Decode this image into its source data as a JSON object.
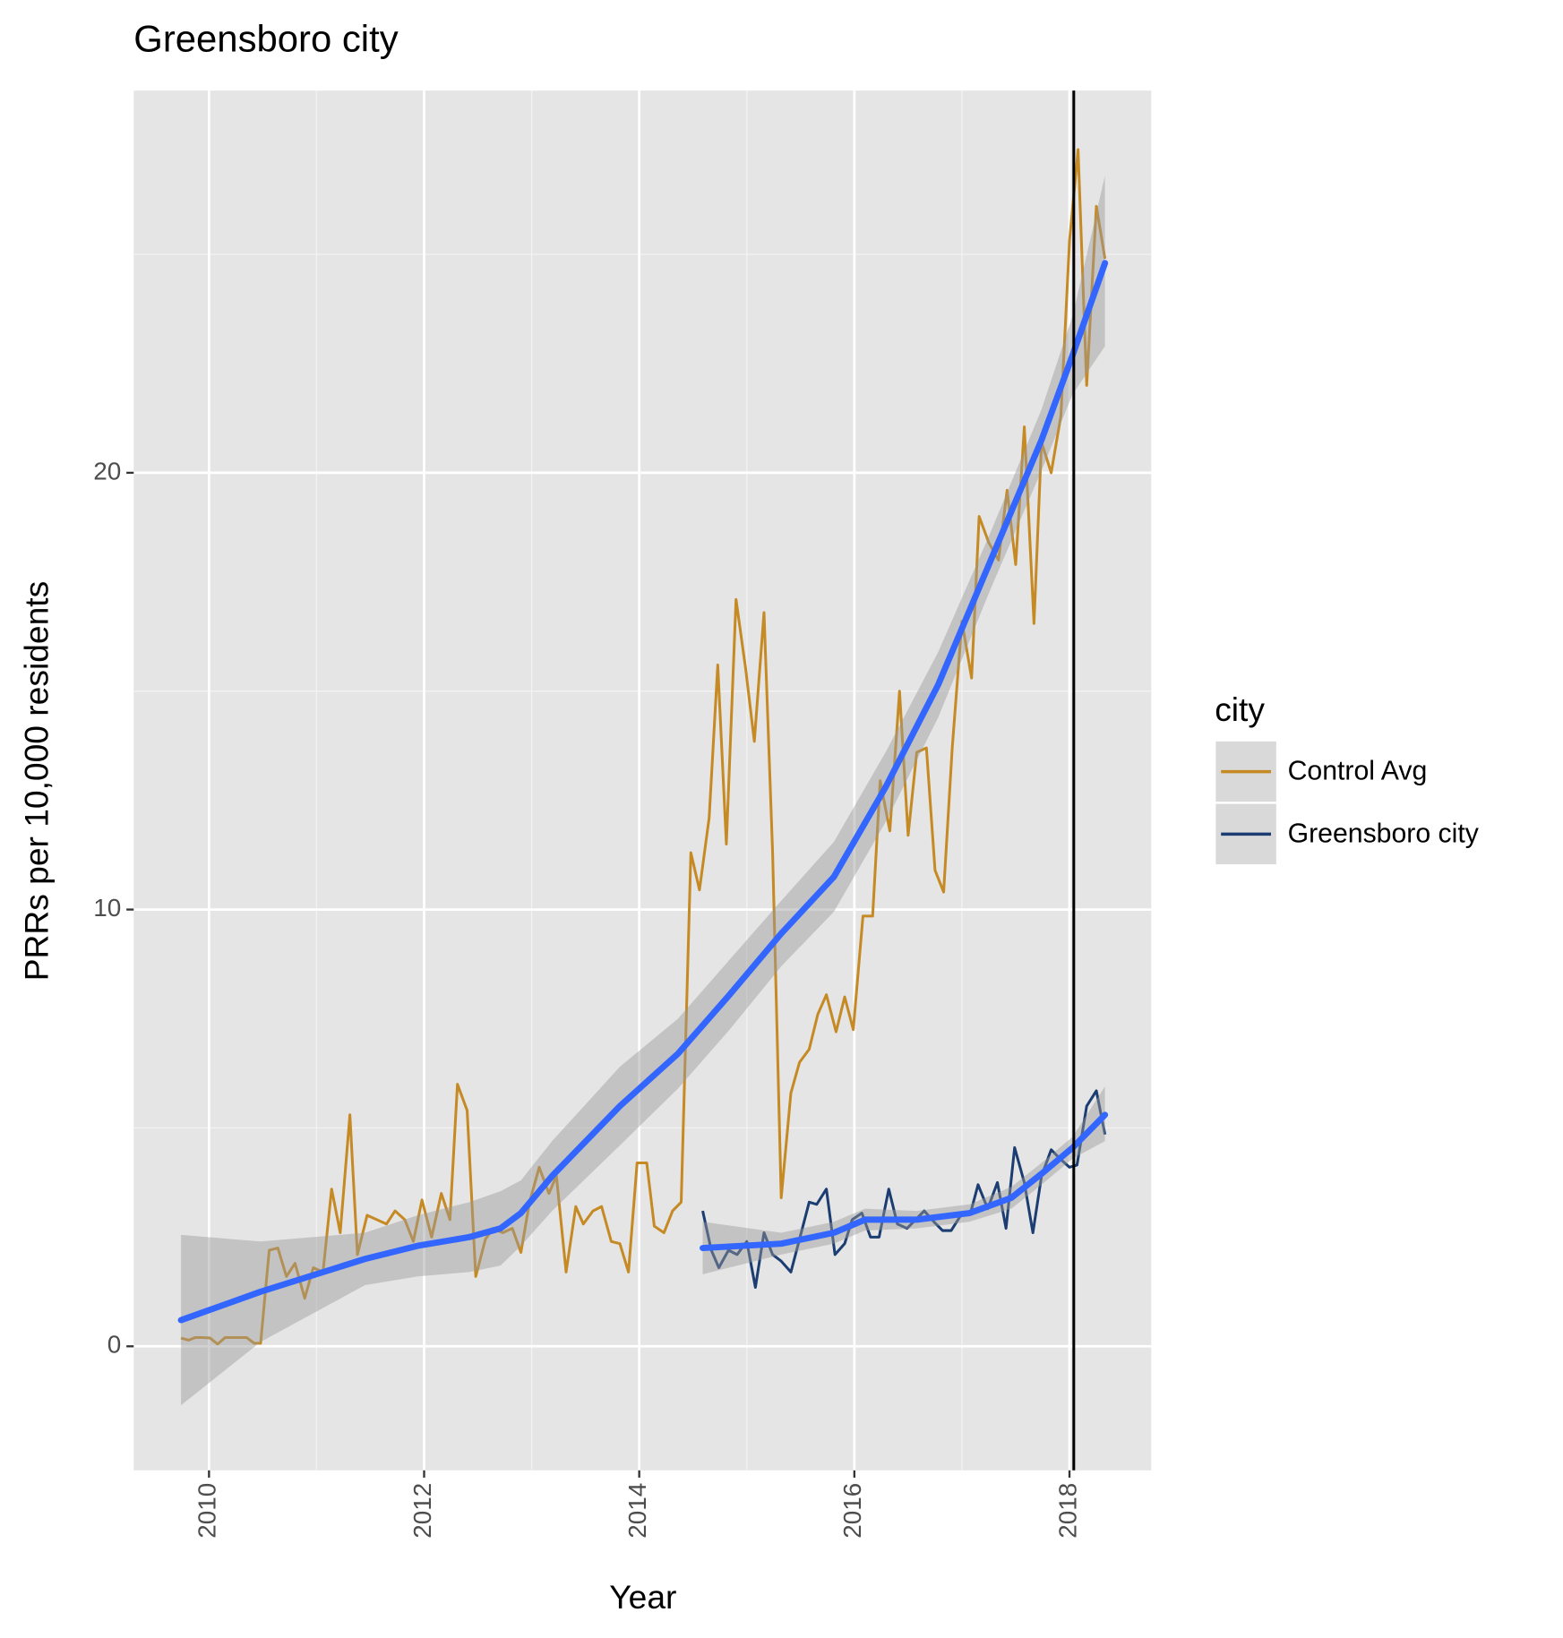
{
  "chart_data": {
    "type": "line",
    "title": "Greensboro city",
    "x_label": "Year",
    "y_label": "PRRs per 10,000 residents",
    "legend_title": "city",
    "legend_position": "right",
    "grid": true,
    "xlim": [
      2009.3,
      2018.76
    ],
    "ylim": [
      -2.84,
      28.75
    ],
    "xticks": [
      2010,
      2012,
      2014,
      2016,
      2018
    ],
    "yticks": [
      0,
      10,
      20
    ],
    "vline": 2018.04,
    "smooth_color": "#3366ff",
    "series": [
      {
        "name": "Control Avg",
        "color": "#c68a24",
        "x": [
          2009.74,
          2009.81,
          2009.87,
          2009.94,
          2010.01,
          2010.08,
          2010.15,
          2010.21,
          2010.28,
          2010.35,
          2010.42,
          2010.48,
          2010.56,
          2010.64,
          2010.72,
          2010.8,
          2010.89,
          2010.97,
          2011.06,
          2011.14,
          2011.22,
          2011.31,
          2011.38,
          2011.47,
          2011.56,
          2011.65,
          2011.73,
          2011.82,
          2011.9,
          2011.98,
          2012.07,
          2012.16,
          2012.24,
          2012.31,
          2012.4,
          2012.48,
          2012.57,
          2012.64,
          2012.73,
          2012.82,
          2012.9,
          2012.98,
          2013.07,
          2013.16,
          2013.23,
          2013.32,
          2013.41,
          2013.48,
          2013.57,
          2013.65,
          2013.74,
          2013.82,
          2013.9,
          2013.98,
          2014.07,
          2014.14,
          2014.23,
          2014.31,
          2014.39,
          2014.48,
          2014.56,
          2014.65,
          2014.73,
          2014.81,
          2014.9,
          2014.99,
          2015.07,
          2015.16,
          2015.24,
          2015.32,
          2015.41,
          2015.49,
          2015.58,
          2015.66,
          2015.74,
          2015.83,
          2015.91,
          2015.99,
          2016.08,
          2016.17,
          2016.24,
          2016.33,
          2016.42,
          2016.5,
          2016.58,
          2016.67,
          2016.75,
          2016.83,
          2016.91,
          2017.0,
          2017.09,
          2017.16,
          2017.25,
          2017.34,
          2017.42,
          2017.5,
          2017.58,
          2017.67,
          2017.74,
          2017.83,
          2017.92,
          2018.0,
          2018.08,
          2018.16,
          2018.25,
          2018.33
        ],
        "values": [
          0.19,
          0.14,
          0.2,
          0.2,
          0.19,
          0.05,
          0.2,
          0.2,
          0.2,
          0.2,
          0.07,
          0.07,
          2.2,
          2.25,
          1.6,
          1.9,
          1.1,
          1.8,
          1.7,
          3.6,
          2.6,
          5.3,
          2.1,
          3.0,
          2.9,
          2.8,
          3.1,
          2.9,
          2.4,
          3.35,
          2.5,
          3.5,
          2.9,
          6.0,
          5.4,
          1.6,
          2.45,
          2.7,
          2.6,
          2.7,
          2.15,
          3.3,
          4.1,
          3.5,
          3.9,
          1.7,
          3.2,
          2.8,
          3.1,
          3.2,
          2.4,
          2.35,
          1.7,
          4.2,
          4.2,
          2.75,
          2.6,
          3.1,
          3.3,
          11.3,
          10.45,
          12.1,
          15.6,
          11.5,
          17.1,
          15.5,
          13.85,
          16.8,
          11.3,
          3.4,
          5.8,
          6.5,
          6.8,
          7.6,
          8.05,
          7.2,
          8.0,
          7.25,
          9.85,
          9.85,
          12.95,
          11.8,
          15.0,
          11.7,
          13.6,
          13.7,
          10.9,
          10.4,
          13.7,
          16.6,
          15.3,
          19.0,
          18.4,
          18.0,
          19.6,
          17.9,
          21.05,
          16.55,
          20.7,
          20.0,
          21.3,
          25.3,
          27.4,
          22.0,
          26.1,
          24.9
        ],
        "smooth": {
          "x": [
            2009.74,
            2010.48,
            2011.45,
            2011.94,
            2012.42,
            2012.71,
            2012.9,
            2013.19,
            2013.82,
            2014.36,
            2014.84,
            2015.32,
            2015.81,
            2016.29,
            2016.78,
            2017.26,
            2017.74,
            2018.03,
            2018.33
          ],
          "values": [
            0.6,
            1.25,
            2.0,
            2.3,
            2.5,
            2.7,
            3.05,
            3.9,
            5.5,
            6.7,
            8.05,
            9.45,
            10.75,
            12.8,
            15.15,
            17.95,
            20.75,
            22.7,
            24.8
          ],
          "upper": [
            2.55,
            2.4,
            2.6,
            3.0,
            3.3,
            3.55,
            3.8,
            4.7,
            6.4,
            7.5,
            8.85,
            10.2,
            11.55,
            13.6,
            15.9,
            18.6,
            21.45,
            23.6,
            26.8
          ],
          "lower": [
            -1.35,
            0.1,
            1.4,
            1.6,
            1.7,
            1.85,
            2.3,
            3.1,
            4.6,
            5.9,
            7.25,
            8.7,
            9.95,
            12.0,
            14.4,
            17.3,
            20.05,
            21.8,
            22.9
          ]
        }
      },
      {
        "name": "Greensboro city",
        "color": "#1b3d72",
        "x": [
          2014.59,
          2014.67,
          2014.74,
          2014.83,
          2014.91,
          2015.0,
          2015.08,
          2015.16,
          2015.24,
          2015.32,
          2015.41,
          2015.49,
          2015.58,
          2015.65,
          2015.74,
          2015.82,
          2015.91,
          2015.98,
          2016.07,
          2016.15,
          2016.23,
          2016.32,
          2016.4,
          2016.49,
          2016.57,
          2016.65,
          2016.74,
          2016.82,
          2016.9,
          2016.99,
          2017.08,
          2017.15,
          2017.24,
          2017.33,
          2017.41,
          2017.49,
          2017.58,
          2017.66,
          2017.74,
          2017.83,
          2017.91,
          2018.0,
          2018.07,
          2018.16,
          2018.25,
          2018.33
        ],
        "values": [
          3.1,
          2.2,
          1.8,
          2.2,
          2.1,
          2.4,
          1.35,
          2.6,
          2.1,
          1.95,
          1.7,
          2.45,
          3.3,
          3.25,
          3.6,
          2.1,
          2.35,
          2.9,
          3.05,
          2.5,
          2.5,
          3.6,
          2.8,
          2.7,
          2.9,
          3.1,
          2.85,
          2.65,
          2.65,
          3.0,
          3.05,
          3.7,
          3.15,
          3.75,
          2.7,
          4.55,
          3.75,
          2.6,
          3.9,
          4.5,
          4.3,
          4.1,
          4.15,
          5.5,
          5.85,
          4.85
        ],
        "smooth": {
          "x": [
            2014.59,
            2015.32,
            2015.81,
            2016.1,
            2016.58,
            2017.07,
            2017.46,
            2017.74,
            2018.03,
            2018.33
          ],
          "values": [
            2.25,
            2.35,
            2.6,
            2.9,
            2.9,
            3.05,
            3.4,
            3.95,
            4.55,
            5.3
          ],
          "upper": [
            2.85,
            2.6,
            2.85,
            3.15,
            3.1,
            3.25,
            3.65,
            4.2,
            4.8,
            5.95
          ],
          "lower": [
            1.65,
            2.1,
            2.35,
            2.65,
            2.7,
            2.85,
            3.15,
            3.7,
            4.3,
            4.7
          ]
        }
      }
    ]
  }
}
